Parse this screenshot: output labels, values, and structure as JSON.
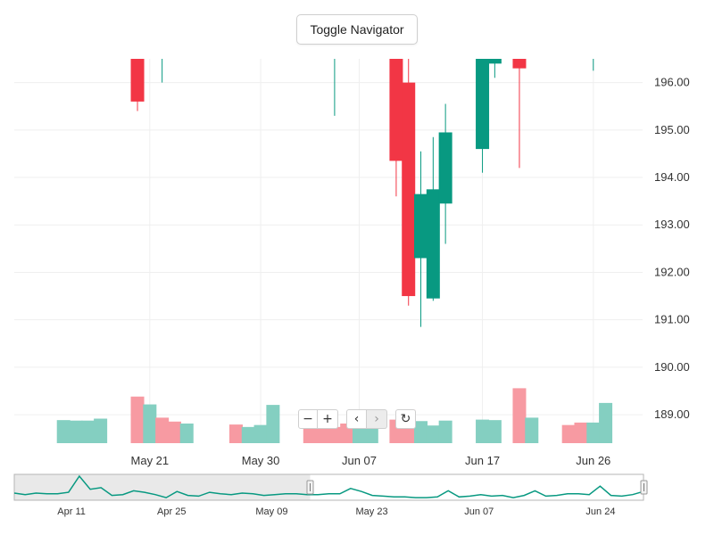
{
  "toolbar": {
    "toggle_label": "Toggle Navigator"
  },
  "controls": {
    "zoom_out": "−",
    "zoom_in": "+",
    "prev": "‹",
    "next": "›",
    "reset": "↻"
  },
  "colors": {
    "up": "#089981",
    "down": "#f23645",
    "up_volume": "#84cfc1",
    "down_volume": "#f79aa2",
    "grid": "#efefef",
    "navigator_line": "#089981"
  },
  "chart_data": {
    "type": "candlestick",
    "y_axis": {
      "range": [
        188.4,
        196.5
      ],
      "ticks": [
        "189.00",
        "190.00",
        "191.00",
        "192.00",
        "193.00",
        "194.00",
        "195.00",
        "196.00"
      ],
      "position": "right"
    },
    "x_axis": {
      "ticks": [
        "May 21",
        "May 30",
        "Jun 07",
        "Jun 17",
        "Jun 26"
      ]
    },
    "candles": [
      {
        "date": "2024-05-20",
        "open": 196.6,
        "high": 196.6,
        "low": 195.4,
        "close": 195.6
      },
      {
        "date": "2024-05-22",
        "open": 196.6,
        "high": 196.6,
        "low": 196.0,
        "close": 196.6
      },
      {
        "date": "2024-05-24",
        "open": 196.6,
        "high": 196.6,
        "low": 196.6,
        "close": 196.6
      },
      {
        "date": "2024-05-28",
        "open": 196.6,
        "high": 196.6,
        "low": 196.6,
        "close": 196.6
      },
      {
        "date": "2024-06-03",
        "open": 196.6,
        "high": 196.6,
        "low": 196.6,
        "close": 196.6
      },
      {
        "date": "2024-06-05",
        "open": 196.6,
        "high": 196.6,
        "low": 195.3,
        "close": 196.6
      },
      {
        "date": "2024-06-10",
        "open": 196.6,
        "high": 196.6,
        "low": 193.6,
        "close": 194.35
      },
      {
        "date": "2024-06-11",
        "open": 196.0,
        "high": 196.6,
        "low": 191.3,
        "close": 191.5
      },
      {
        "date": "2024-06-12",
        "open": 192.3,
        "high": 194.55,
        "low": 190.85,
        "close": 193.65
      },
      {
        "date": "2024-06-13",
        "open": 191.45,
        "high": 194.85,
        "low": 191.4,
        "close": 193.75
      },
      {
        "date": "2024-06-14",
        "open": 193.45,
        "high": 195.55,
        "low": 192.6,
        "close": 194.95
      },
      {
        "date": "2024-06-17",
        "open": 194.6,
        "high": 196.6,
        "low": 194.1,
        "close": 196.6
      },
      {
        "date": "2024-06-18",
        "open": 196.4,
        "high": 196.6,
        "low": 196.1,
        "close": 196.5
      },
      {
        "date": "2024-06-20",
        "open": 196.6,
        "high": 196.6,
        "low": 194.2,
        "close": 196.3
      },
      {
        "date": "2024-06-21",
        "open": 196.6,
        "high": 196.6,
        "low": 196.6,
        "close": 196.6
      },
      {
        "date": "2024-06-24",
        "open": 196.6,
        "high": 196.6,
        "low": 196.6,
        "close": 196.6
      },
      {
        "date": "2024-06-26",
        "open": 196.6,
        "high": 196.6,
        "low": 196.25,
        "close": 196.6
      },
      {
        "date": "2024-06-27",
        "open": 196.6,
        "high": 196.6,
        "low": 196.6,
        "close": 196.6
      }
    ],
    "volume": [
      {
        "date": "2024-05-14",
        "value": 47,
        "direction": "up"
      },
      {
        "date": "2024-05-15",
        "value": 46,
        "direction": "up"
      },
      {
        "date": "2024-05-16",
        "value": 46,
        "direction": "up"
      },
      {
        "date": "2024-05-17",
        "value": 50,
        "direction": "up"
      },
      {
        "date": "2024-05-20",
        "value": 95,
        "direction": "down"
      },
      {
        "date": "2024-05-21",
        "value": 79,
        "direction": "up"
      },
      {
        "date": "2024-05-22",
        "value": 52,
        "direction": "down"
      },
      {
        "date": "2024-05-23",
        "value": 44,
        "direction": "down"
      },
      {
        "date": "2024-05-24",
        "value": 40,
        "direction": "up"
      },
      {
        "date": "2024-05-28",
        "value": 38,
        "direction": "down"
      },
      {
        "date": "2024-05-29",
        "value": 33,
        "direction": "up"
      },
      {
        "date": "2024-05-30",
        "value": 37,
        "direction": "up"
      },
      {
        "date": "2024-05-31",
        "value": 78,
        "direction": "up"
      },
      {
        "date": "2024-06-03",
        "value": 35,
        "direction": "down"
      },
      {
        "date": "2024-06-04",
        "value": 37,
        "direction": "down"
      },
      {
        "date": "2024-06-05",
        "value": 33,
        "direction": "down"
      },
      {
        "date": "2024-06-06",
        "value": 40,
        "direction": "down"
      },
      {
        "date": "2024-06-07",
        "value": 35,
        "direction": "up"
      },
      {
        "date": "2024-06-08",
        "value": 32,
        "direction": "up"
      },
      {
        "date": "2024-06-10",
        "value": 48,
        "direction": "down"
      },
      {
        "date": "2024-06-11",
        "value": 68,
        "direction": "down"
      },
      {
        "date": "2024-06-12",
        "value": 45,
        "direction": "up"
      },
      {
        "date": "2024-06-13",
        "value": 36,
        "direction": "up"
      },
      {
        "date": "2024-06-14",
        "value": 46,
        "direction": "up"
      },
      {
        "date": "2024-06-17",
        "value": 48,
        "direction": "up"
      },
      {
        "date": "2024-06-18",
        "value": 47,
        "direction": "up"
      },
      {
        "date": "2024-06-20",
        "value": 112,
        "direction": "down"
      },
      {
        "date": "2024-06-21",
        "value": 52,
        "direction": "up"
      },
      {
        "date": "2024-06-24",
        "value": 37,
        "direction": "down"
      },
      {
        "date": "2024-06-25",
        "value": 42,
        "direction": "down"
      },
      {
        "date": "2024-06-26",
        "value": 42,
        "direction": "up"
      },
      {
        "date": "2024-06-27",
        "value": 82,
        "direction": "up"
      }
    ],
    "navigator": {
      "ticks": [
        "Apr 11",
        "Apr 25",
        "May 09",
        "May 23",
        "Jun 07",
        "Jun 24"
      ],
      "selected_range": [
        "2024-05-13",
        "2024-06-28"
      ],
      "series": [
        7,
        5,
        7,
        6,
        6,
        8,
        29,
        12,
        14,
        4,
        5,
        10,
        8,
        5,
        1,
        9,
        4,
        3,
        8,
        6,
        5,
        7,
        6,
        4,
        5,
        6,
        6,
        5,
        5,
        6,
        6,
        13,
        9,
        4,
        3,
        2,
        2,
        1,
        1,
        2,
        10,
        2,
        3,
        5,
        3,
        4,
        1,
        4,
        10,
        3,
        4,
        6,
        6,
        5,
        16,
        4,
        3,
        5,
        9
      ]
    }
  }
}
